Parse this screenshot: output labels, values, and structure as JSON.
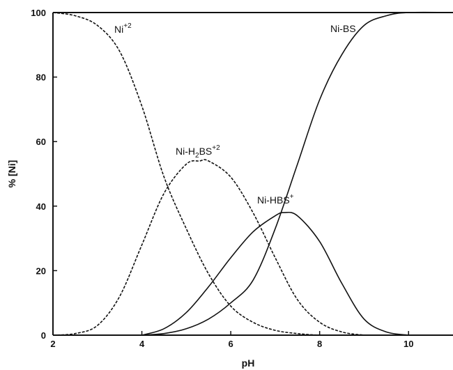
{
  "chart_data": {
    "type": "line",
    "xlabel": "pH",
    "ylabel": "% [Ni]",
    "xlim": [
      2,
      11
    ],
    "ylim": [
      0,
      100
    ],
    "xticks": [
      2,
      4,
      6,
      8,
      10
    ],
    "yticks": [
      0,
      20,
      40,
      60,
      80,
      100
    ],
    "grid": false,
    "series": [
      {
        "name": "Ni",
        "superscript": "+2",
        "style": "dashed",
        "x": [
          2.0,
          2.5,
          3.0,
          3.5,
          4.0,
          4.5,
          5.0,
          5.5,
          6.0,
          6.5,
          7.0,
          7.5,
          8.0,
          8.5
        ],
        "y": [
          100,
          99,
          96,
          88,
          71,
          49,
          33,
          19,
          9,
          4,
          1.5,
          0.5,
          0,
          0
        ]
      },
      {
        "name": "Ni-H2BS",
        "superscript": "+2",
        "style": "dashed",
        "x": [
          2.0,
          2.5,
          3.0,
          3.5,
          4.0,
          4.5,
          5.0,
          5.3,
          5.5,
          6.0,
          6.5,
          7.0,
          7.5,
          8.0,
          8.5,
          9.0
        ],
        "y": [
          0,
          0.5,
          3,
          12,
          28,
          44,
          53,
          54,
          54,
          49,
          38,
          24,
          11,
          4,
          1,
          0
        ]
      },
      {
        "name": "Ni-HBS",
        "superscript": "+",
        "style": "solid",
        "x": [
          4.0,
          4.5,
          5.0,
          5.5,
          6.0,
          6.5,
          7.0,
          7.2,
          7.5,
          8.0,
          8.5,
          9.0,
          9.5,
          10.0
        ],
        "y": [
          0,
          2,
          7,
          15,
          24,
          32,
          37,
          38,
          37,
          29,
          16,
          5,
          1,
          0
        ]
      },
      {
        "name": "Ni-BS",
        "superscript": "",
        "style": "solid",
        "x": [
          4.0,
          4.5,
          5.0,
          5.5,
          6.0,
          6.5,
          7.0,
          7.5,
          8.0,
          8.5,
          9.0,
          9.5,
          10.0,
          11.0
        ],
        "y": [
          0,
          0.5,
          2,
          5,
          10,
          17,
          33,
          53,
          73,
          87,
          96,
          99,
          100,
          100
        ]
      }
    ]
  }
}
